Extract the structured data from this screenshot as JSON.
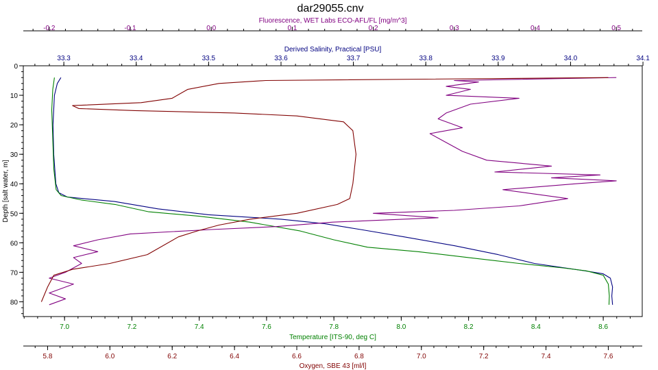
{
  "chart_data": {
    "type": "line",
    "title": "dar29055.cnv",
    "grid": false,
    "legend": "none",
    "y_axis": {
      "label": "Depth [salt water, m]",
      "range": [
        0,
        85
      ],
      "inverted": true,
      "ticks": [
        0,
        10,
        20,
        30,
        40,
        50,
        60,
        70,
        80
      ],
      "tick_labels": [
        "0",
        "10",
        "20",
        "30",
        "40",
        "50",
        "60",
        "70",
        "80"
      ],
      "color": "#000000"
    },
    "x_axes": [
      {
        "id": "fluorescence",
        "label": "Fluorescence, WET Labs ECO-AFL/FL [mg/m^3]",
        "position": "top-outer",
        "range": [
          -0.232,
          0.532
        ],
        "ticks": [
          -0.2,
          -0.1,
          0.0,
          0.1,
          0.2,
          0.3,
          0.4,
          0.5
        ],
        "tick_labels": [
          "-0.2",
          "-0.1",
          "0.0",
          "0.1",
          "0.2",
          "0.3",
          "0.4",
          "0.5"
        ],
        "color": "#800080"
      },
      {
        "id": "salinity",
        "label": "Derived Salinity, Practical [PSU]",
        "position": "top-inner",
        "range": [
          33.244,
          34.099
        ],
        "ticks": [
          33.3,
          33.4,
          33.5,
          33.6,
          33.7,
          33.8,
          33.9,
          34.0,
          34.1
        ],
        "tick_labels": [
          "33.3",
          "33.4",
          "33.5",
          "33.6",
          "33.7",
          "33.8",
          "33.9",
          "34.0",
          "34.1"
        ],
        "color": "#000080"
      },
      {
        "id": "temperature",
        "label": "Temperature [ITS-90, deg C]",
        "position": "bottom-inner",
        "range": [
          6.8775,
          8.7158
        ],
        "ticks": [
          7.0,
          7.2,
          7.4,
          7.6,
          7.8,
          8.0,
          8.2,
          8.4,
          8.6
        ],
        "tick_labels": [
          "7.0",
          "7.2",
          "7.4",
          "7.6",
          "7.8",
          "8.0",
          "8.2",
          "8.4",
          "8.6"
        ],
        "color": "#008000"
      },
      {
        "id": "oxygen",
        "label": "Oxygen, SBE 43 [ml/l]",
        "position": "bottom-outer",
        "range": [
          5.722,
          7.709
        ],
        "ticks": [
          5.8,
          6.0,
          6.2,
          6.4,
          6.6,
          6.8,
          7.0,
          7.2,
          7.4,
          7.6
        ],
        "tick_labels": [
          "5.8",
          "6.0",
          "6.2",
          "6.4",
          "6.6",
          "6.8",
          "7.0",
          "7.2",
          "7.4",
          "7.6"
        ],
        "color": "#800000"
      }
    ],
    "series": [
      {
        "axis": "salinity",
        "color": "#000080",
        "points": [
          [
            33.296,
            4
          ],
          [
            33.291,
            6
          ],
          [
            33.287,
            10
          ],
          [
            33.285,
            20
          ],
          [
            33.286,
            30
          ],
          [
            33.289,
            40
          ],
          [
            33.293,
            43
          ],
          [
            33.305,
            44.5
          ],
          [
            33.37,
            46
          ],
          [
            33.43,
            48.5
          ],
          [
            33.5,
            50.5
          ],
          [
            33.6,
            52
          ],
          [
            33.66,
            53.5
          ],
          [
            33.71,
            55.5
          ],
          [
            33.77,
            58
          ],
          [
            33.84,
            61
          ],
          [
            33.9,
            64
          ],
          [
            33.95,
            67
          ],
          [
            34.02,
            69.5
          ],
          [
            34.045,
            70.5
          ],
          [
            34.055,
            72
          ],
          [
            34.058,
            75
          ],
          [
            34.057,
            78
          ],
          [
            34.058,
            81
          ]
        ]
      },
      {
        "axis": "temperature",
        "color": "#008000",
        "points": [
          [
            6.97,
            4
          ],
          [
            6.965,
            8
          ],
          [
            6.962,
            15
          ],
          [
            6.965,
            25
          ],
          [
            6.968,
            35
          ],
          [
            6.975,
            42
          ],
          [
            6.99,
            44
          ],
          [
            7.05,
            45.5
          ],
          [
            7.15,
            47
          ],
          [
            7.25,
            49.5
          ],
          [
            7.4,
            51
          ],
          [
            7.55,
            53
          ],
          [
            7.7,
            56
          ],
          [
            7.8,
            59
          ],
          [
            7.9,
            61.5
          ],
          [
            8.05,
            63
          ],
          [
            8.2,
            65
          ],
          [
            8.35,
            67
          ],
          [
            8.48,
            68.5
          ],
          [
            8.55,
            69.5
          ],
          [
            8.6,
            71
          ],
          [
            8.615,
            74
          ],
          [
            8.618,
            78
          ],
          [
            8.617,
            81
          ]
        ]
      },
      {
        "axis": "fluorescence",
        "color": "#800080",
        "points": [
          [
            -0.2,
            81
          ],
          [
            -0.18,
            79
          ],
          [
            -0.2,
            77
          ],
          [
            -0.17,
            74
          ],
          [
            -0.2,
            72
          ],
          [
            -0.18,
            70
          ],
          [
            -0.16,
            67
          ],
          [
            -0.17,
            65
          ],
          [
            -0.14,
            63
          ],
          [
            -0.17,
            61
          ],
          [
            -0.14,
            59
          ],
          [
            -0.1,
            57
          ],
          [
            0.0,
            55.5
          ],
          [
            0.08,
            54.5
          ],
          [
            0.15,
            53
          ],
          [
            0.28,
            51.5
          ],
          [
            0.2,
            50
          ],
          [
            0.3,
            49
          ],
          [
            0.38,
            47.5
          ],
          [
            0.44,
            45
          ],
          [
            0.36,
            42
          ],
          [
            0.45,
            40
          ],
          [
            0.5,
            39
          ],
          [
            0.42,
            38
          ],
          [
            0.48,
            37
          ],
          [
            0.35,
            36
          ],
          [
            0.42,
            34
          ],
          [
            0.34,
            32
          ],
          [
            0.31,
            29
          ],
          [
            0.29,
            26
          ],
          [
            0.27,
            23
          ],
          [
            0.31,
            21
          ],
          [
            0.28,
            18
          ],
          [
            0.29,
            16
          ],
          [
            0.32,
            13
          ],
          [
            0.38,
            11
          ],
          [
            0.29,
            10
          ],
          [
            0.32,
            8
          ],
          [
            0.29,
            7
          ],
          [
            0.33,
            5.5
          ],
          [
            0.3,
            5
          ],
          [
            0.5,
            4
          ]
        ]
      },
      {
        "axis": "oxygen",
        "color": "#800000",
        "points": [
          [
            5.78,
            80
          ],
          [
            5.8,
            75
          ],
          [
            5.82,
            71
          ],
          [
            5.88,
            69
          ],
          [
            6.0,
            67
          ],
          [
            6.12,
            64
          ],
          [
            6.22,
            58
          ],
          [
            6.28,
            56
          ],
          [
            6.35,
            54
          ],
          [
            6.45,
            52
          ],
          [
            6.6,
            50
          ],
          [
            6.73,
            47
          ],
          [
            6.77,
            45
          ],
          [
            6.78,
            40
          ],
          [
            6.79,
            30
          ],
          [
            6.78,
            22
          ],
          [
            6.75,
            19
          ],
          [
            6.6,
            17
          ],
          [
            6.4,
            16
          ],
          [
            6.08,
            15.2
          ],
          [
            5.9,
            14.5
          ],
          [
            5.88,
            13.5
          ],
          [
            6.1,
            12.5
          ],
          [
            6.2,
            11
          ],
          [
            6.25,
            8
          ],
          [
            6.35,
            6
          ],
          [
            6.5,
            5
          ],
          [
            7.6,
            4
          ]
        ]
      }
    ]
  }
}
